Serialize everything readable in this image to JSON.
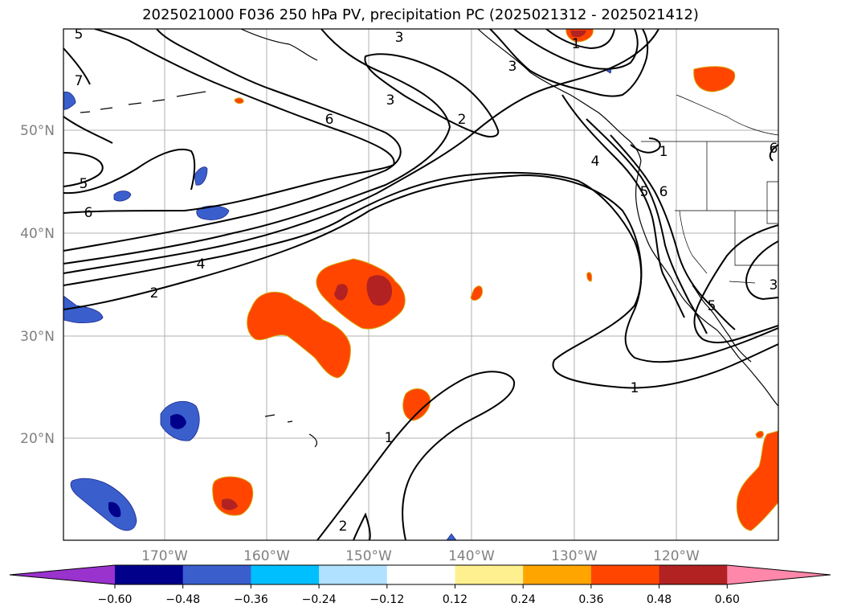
{
  "title": "2025021000 F036 250 hPa PV, precipitation PC (2025021312 - 2025021412)",
  "lat_labels": [
    "50°N",
    "40°N",
    "30°N",
    "20°N"
  ],
  "lon_labels": [
    "170°W",
    "160°W",
    "150°W",
    "140°W",
    "130°W",
    "120°W"
  ],
  "contour_labels": {
    "c5a": "5",
    "c7": "7",
    "c5b": "5",
    "c6a": "6",
    "c4a": "4",
    "c2a": "2",
    "c3a": "3",
    "c3b": "3",
    "c6b": "6",
    "c2b": "2",
    "c3c": "3",
    "c1a": "1",
    "c4b": "4",
    "c5c": "5",
    "c6c": "6",
    "c1b": "1",
    "c6d": "6",
    "c3d": "3",
    "c5d": "5",
    "c1c": "1",
    "c1d": "1",
    "c2c": "2"
  },
  "colorbar": {
    "colors": [
      "#9a32cd",
      "#00008b",
      "#3a5fcd",
      "#00bfff",
      "#b0e2ff",
      "#ffffff",
      "#fff08f",
      "#ffa500",
      "#ff4500",
      "#b22222",
      "#ff88aa"
    ],
    "tick_labels": [
      "−0.60",
      "−0.48",
      "−0.36",
      "−0.24",
      "−0.12",
      "0.12",
      "0.24",
      "0.36",
      "0.48",
      "0.60"
    ]
  }
}
